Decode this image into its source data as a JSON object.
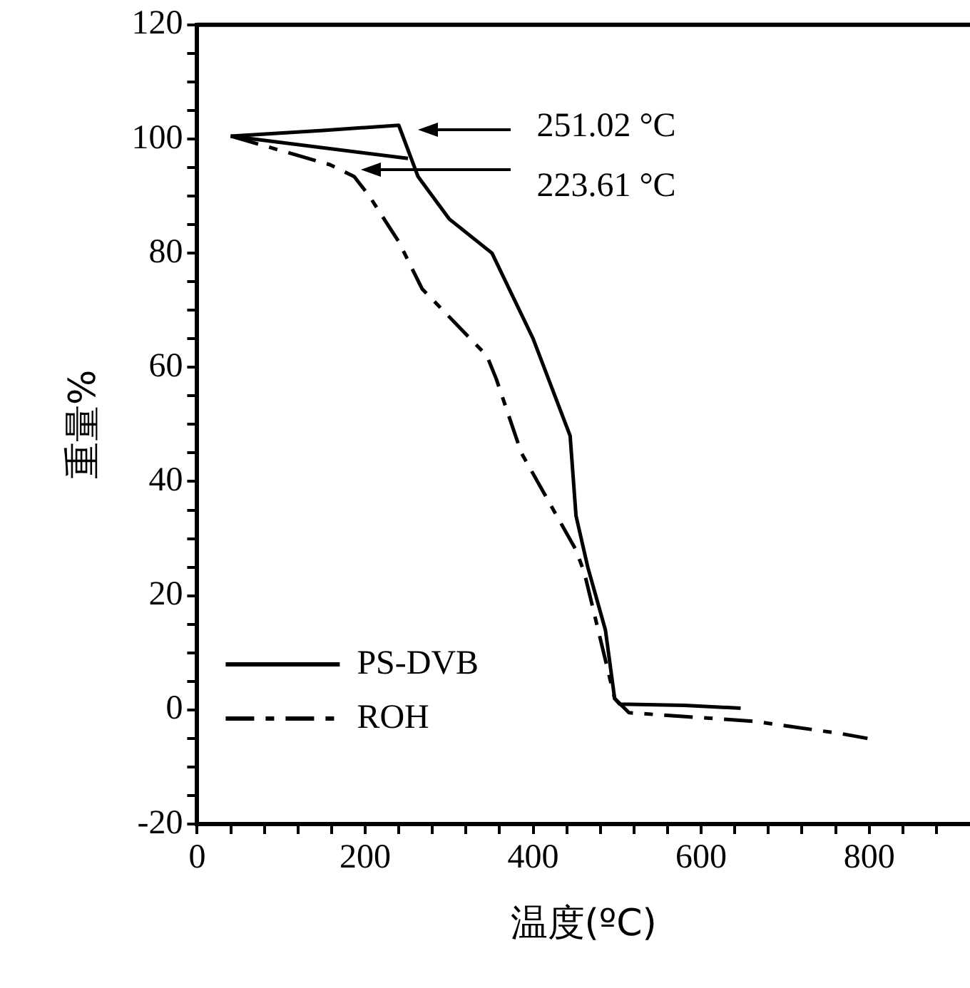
{
  "chart_data": {
    "type": "line",
    "xlabel": "温度(ºC)",
    "ylabel": "重量%",
    "xlim": [
      0,
      920
    ],
    "ylim": [
      -20,
      120
    ],
    "xticks": [
      0,
      {
        "value": 40,
        "label": null
      },
      {
        "value": 80,
        "label": null
      },
      {
        "value": 120,
        "label": null
      },
      {
        "value": 160,
        "label": null
      },
      200,
      {
        "value": 240,
        "label": null
      },
      {
        "value": 280,
        "label": null
      },
      {
        "value": 320,
        "label": null
      },
      {
        "value": 360,
        "label": null
      },
      400,
      {
        "value": 440,
        "label": null
      },
      {
        "value": 480,
        "label": null
      },
      {
        "value": 520,
        "label": null
      },
      {
        "value": 560,
        "label": null
      },
      600,
      {
        "value": 640,
        "label": null
      },
      {
        "value": 680,
        "label": null
      },
      {
        "value": 720,
        "label": null
      },
      {
        "value": 760,
        "label": null
      },
      800,
      {
        "value": 840,
        "label": null
      },
      {
        "value": 880,
        "label": null
      }
    ],
    "yticks": [
      -20,
      {
        "value": -15,
        "label": null
      },
      {
        "value": -10,
        "label": null
      },
      {
        "value": -5,
        "label": null
      },
      0,
      {
        "value": 5,
        "label": null
      },
      {
        "value": 10,
        "label": null
      },
      {
        "value": 15,
        "label": null
      },
      20,
      {
        "value": 25,
        "label": null
      },
      {
        "value": 30,
        "label": null
      },
      {
        "value": 35,
        "label": null
      },
      40,
      {
        "value": 45,
        "label": null
      },
      {
        "value": 50,
        "label": null
      },
      {
        "value": 55,
        "label": null
      },
      60,
      {
        "value": 65,
        "label": null
      },
      {
        "value": 70,
        "label": null
      },
      {
        "value": 75,
        "label": null
      },
      80,
      {
        "value": 85,
        "label": null
      },
      {
        "value": 90,
        "label": null
      },
      {
        "value": 95,
        "label": null
      },
      100,
      {
        "value": 105,
        "label": null
      },
      {
        "value": 110,
        "label": null
      },
      {
        "value": 115,
        "label": null
      },
      120
    ],
    "grid": false,
    "legend": "bottom left",
    "marker": "none",
    "series": [
      {
        "name": "PS-DVB",
        "color": "#000000",
        "line_style": "solid",
        "x": [
          40,
          150,
          240,
          263,
          300,
          351,
          400,
          444,
          451,
          465,
          486,
          497,
          503,
          580,
          647
        ],
        "values": [
          100.5,
          101.5,
          102.4,
          93.4,
          86,
          80,
          65,
          48,
          34,
          25,
          14,
          2,
          1,
          0.8,
          0.3
        ]
      },
      {
        "name": "ROH",
        "color": "#000000",
        "line_style": "dashed",
        "x": [
          40,
          158,
          187,
          205,
          240,
          268,
          286,
          345,
          356,
          386,
          451,
          461,
          497,
          514,
          663,
          768,
          798
        ],
        "values": [
          100.5,
          95.5,
          93.4,
          90,
          82,
          73.7,
          71,
          62,
          58,
          45,
          28,
          24,
          2,
          -0.5,
          -2,
          -4.2,
          -5
        ]
      },
      {
        "color": "#000000",
        "line_style": "solid",
        "x": [
          40,
          251
        ],
        "values": [
          100.5,
          96.6
        ]
      }
    ],
    "annotations": [
      "251.02 °C",
      "223.61 °C"
    ]
  }
}
